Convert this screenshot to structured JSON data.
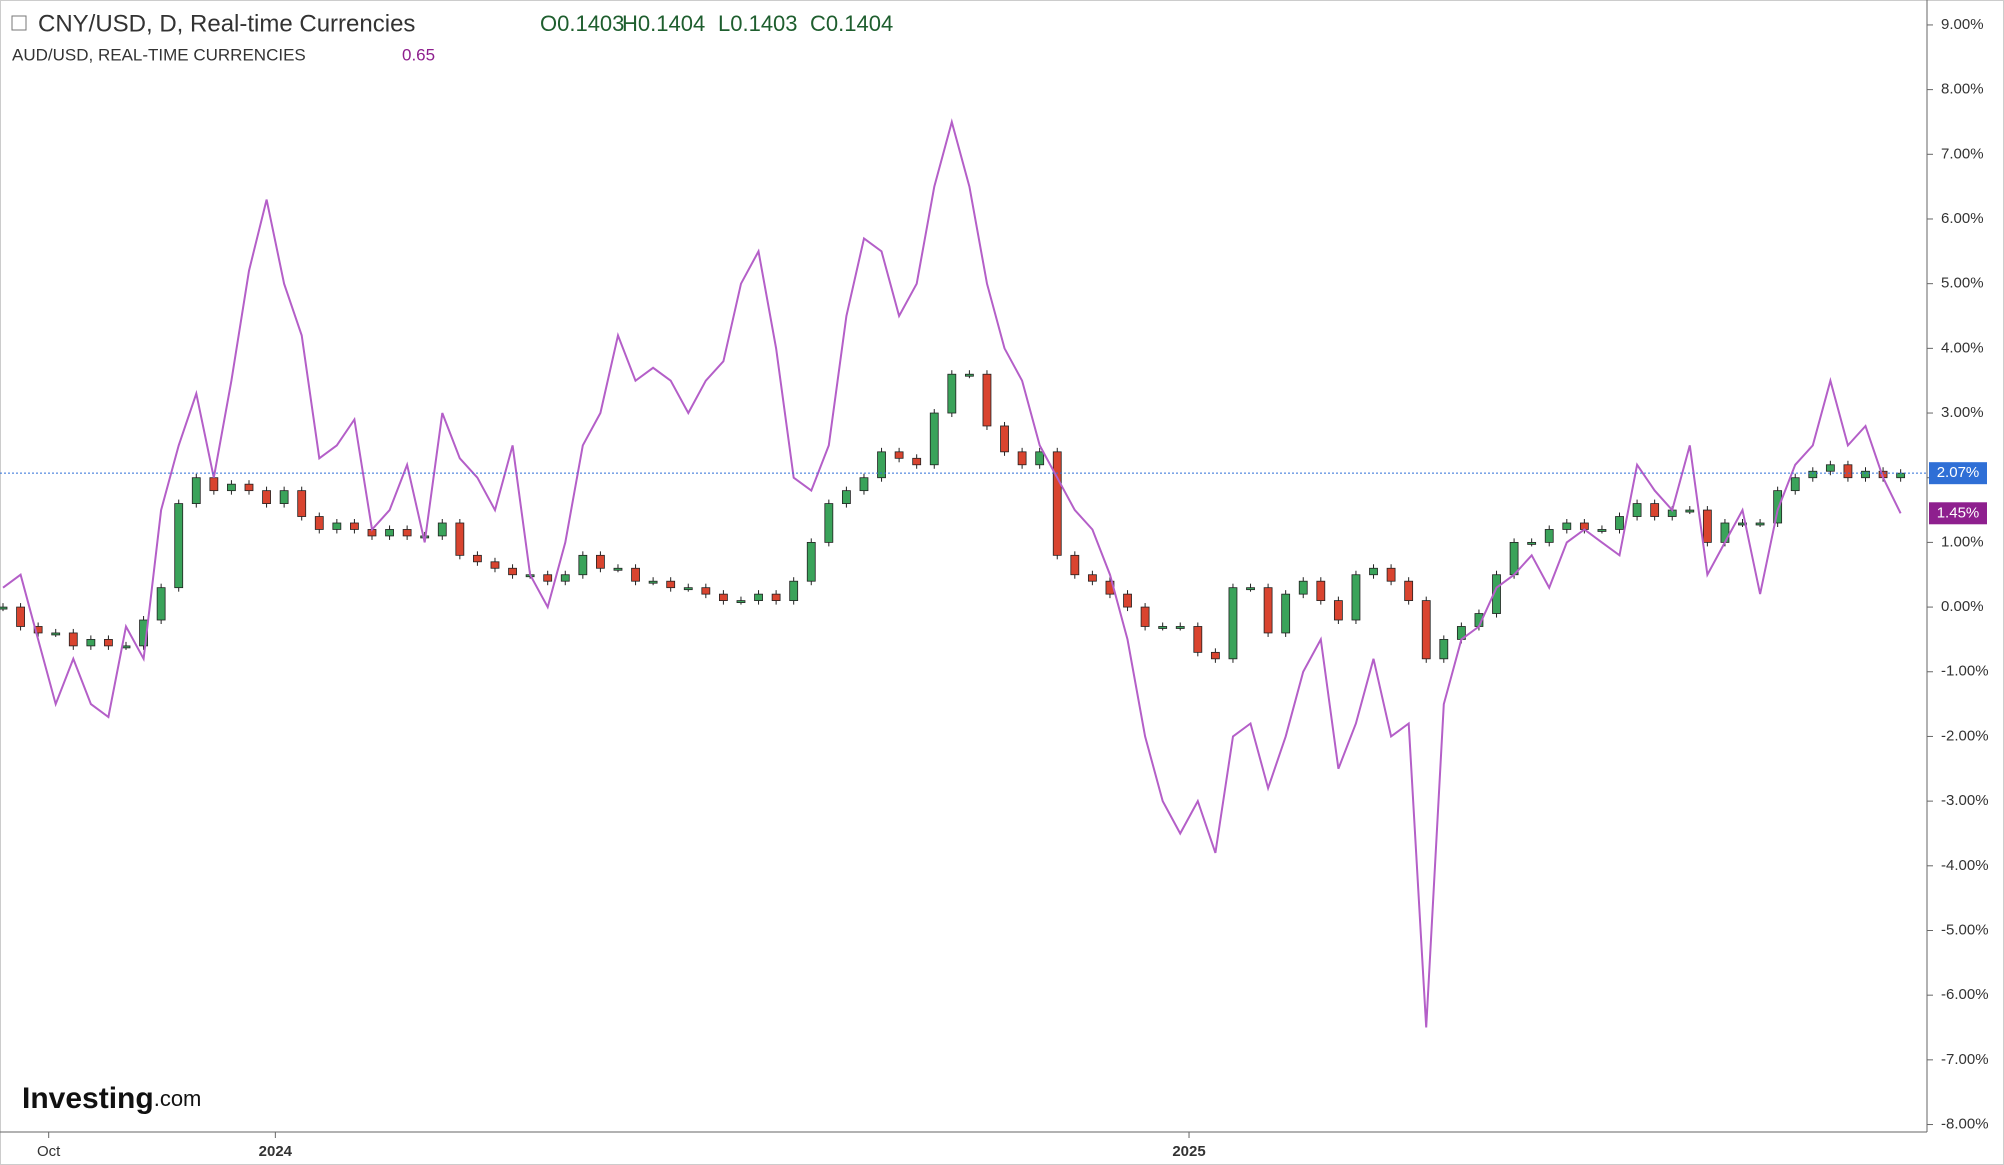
{
  "chart_data": {
    "type": "candlestick-line",
    "header": {
      "symbol": "CNY/USD, D, Real-time Currencies",
      "open": "O0.1403",
      "high": "H0.1404",
      "low": "L0.1403",
      "close": "C0.1404",
      "compare": "AUD/USD, REAL-TIME CURRENCIES",
      "compare_value": "0.65"
    },
    "logo": {
      "brand": "Investing",
      "suffix": ".com"
    },
    "x": [
      0,
      1,
      2,
      3,
      4,
      5,
      6,
      7,
      8,
      9,
      10,
      11,
      12,
      13,
      14,
      15,
      16,
      17,
      18,
      19,
      20,
      21,
      22,
      23,
      24,
      25,
      26,
      27,
      28,
      29,
      30,
      31,
      32,
      33,
      34,
      35,
      36,
      37,
      38,
      39,
      40,
      41,
      42,
      43,
      44,
      45,
      46,
      47,
      48,
      49,
      50,
      51,
      52,
      53,
      54,
      55,
      56,
      57,
      58,
      59,
      60,
      61,
      62,
      63,
      64,
      65,
      66,
      67,
      68,
      69,
      70,
      71,
      72,
      73,
      74,
      75,
      76,
      77,
      78,
      79,
      80,
      81,
      82,
      83,
      84,
      85,
      86,
      87,
      88,
      89,
      90,
      91,
      92,
      93,
      94,
      95,
      96,
      97,
      98,
      99,
      100,
      101,
      102,
      103,
      104,
      105,
      106,
      107,
      108
    ],
    "xlim": [
      0,
      109.5
    ],
    "xticks": [
      {
        "value": 2.6,
        "label": "Oct"
      },
      {
        "value": 15.5,
        "label": "2024"
      },
      {
        "value": 67.5,
        "label": "2025"
      }
    ],
    "ylim": [
      -8.1,
      9.2
    ],
    "yticks": [
      {
        "value": 9,
        "label": "9.00%"
      },
      {
        "value": 8,
        "label": "8.00%"
      },
      {
        "value": 7,
        "label": "7.00%"
      },
      {
        "value": 6,
        "label": "6.00%"
      },
      {
        "value": 5,
        "label": "5.00%"
      },
      {
        "value": 4,
        "label": "4.00%"
      },
      {
        "value": 3,
        "label": "3.00%"
      },
      {
        "value": 2,
        "label": "2.00%"
      },
      {
        "value": 1,
        "label": "1.00%"
      },
      {
        "value": 0,
        "label": "0.00%"
      },
      {
        "value": -1,
        "label": "-1.00%"
      },
      {
        "value": -2,
        "label": "-2.00%"
      },
      {
        "value": -3,
        "label": "-3.00%"
      },
      {
        "value": -4,
        "label": "-4.00%"
      },
      {
        "value": -5,
        "label": "-5.00%"
      },
      {
        "value": -6,
        "label": "-6.00%"
      },
      {
        "value": -7,
        "label": "-7.00%"
      },
      {
        "value": -8,
        "label": "-8.00%"
      }
    ],
    "series": [
      {
        "name": "CNY/USD",
        "kind": "candle",
        "up_color": "#3aa35a",
        "down_color": "#d9442f",
        "badge_color": "#2f6fd6",
        "value_label": "2.07%",
        "values": [
          0.0,
          -0.3,
          -0.4,
          -0.4,
          -0.6,
          -0.5,
          -0.6,
          -0.6,
          -0.2,
          0.3,
          1.6,
          2.0,
          1.8,
          1.9,
          1.8,
          1.6,
          1.8,
          1.4,
          1.2,
          1.3,
          1.2,
          1.1,
          1.2,
          1.1,
          1.1,
          1.3,
          0.8,
          0.7,
          0.6,
          0.5,
          0.5,
          0.4,
          0.5,
          0.8,
          0.6,
          0.6,
          0.4,
          0.4,
          0.3,
          0.3,
          0.2,
          0.1,
          0.1,
          0.2,
          0.1,
          0.4,
          1.0,
          1.6,
          1.8,
          2.0,
          2.4,
          2.3,
          2.2,
          3.0,
          3.6,
          3.6,
          2.8,
          2.4,
          2.2,
          2.4,
          0.8,
          0.5,
          0.4,
          0.2,
          0.0,
          -0.3,
          -0.3,
          -0.3,
          -0.7,
          -0.8,
          0.3,
          0.3,
          -0.4,
          0.2,
          0.4,
          0.1,
          -0.2,
          0.5,
          0.6,
          0.4,
          0.1,
          -0.8,
          -0.5,
          -0.3,
          -0.1,
          0.5,
          1.0,
          1.0,
          1.2,
          1.3,
          1.2,
          1.2,
          1.4,
          1.6,
          1.4,
          1.5,
          1.5,
          1.0,
          1.3,
          1.3,
          1.3,
          1.8,
          2.0,
          2.1,
          2.2,
          2.0,
          2.1,
          2.0,
          2.07
        ]
      },
      {
        "name": "AUD/USD",
        "kind": "line",
        "color": "#b45fc8",
        "badge_color": "#8e1f8e",
        "value_label": "1.45%",
        "values": [
          0.3,
          0.5,
          -0.5,
          -1.5,
          -0.8,
          -1.5,
          -1.7,
          -0.3,
          -0.8,
          1.5,
          2.5,
          3.3,
          2.0,
          3.5,
          5.2,
          6.3,
          5.0,
          4.2,
          2.3,
          2.5,
          2.9,
          1.2,
          1.5,
          2.2,
          1.0,
          3.0,
          2.3,
          2.0,
          1.5,
          2.5,
          0.5,
          0.0,
          1.0,
          2.5,
          3.0,
          4.2,
          3.5,
          3.7,
          3.5,
          3.0,
          3.5,
          3.8,
          5.0,
          5.5,
          4.0,
          2.0,
          1.8,
          2.5,
          4.5,
          5.7,
          5.5,
          4.5,
          5.0,
          6.5,
          7.5,
          6.5,
          5.0,
          4.0,
          3.5,
          2.5,
          2.0,
          1.5,
          1.2,
          0.5,
          -0.5,
          -2.0,
          -3.0,
          -3.5,
          -3.0,
          -3.8,
          -2.0,
          -1.8,
          -2.8,
          -2.0,
          -1.0,
          -0.5,
          -2.5,
          -1.8,
          -0.8,
          -2.0,
          -1.8,
          -6.5,
          -1.5,
          -0.5,
          -0.3,
          0.3,
          0.5,
          0.8,
          0.3,
          1.0,
          1.2,
          1.0,
          0.8,
          2.2,
          1.8,
          1.5,
          2.5,
          0.5,
          1.0,
          1.5,
          0.2,
          1.5,
          2.2,
          2.5,
          3.5,
          2.5,
          2.8,
          2.0,
          1.45
        ]
      }
    ]
  }
}
